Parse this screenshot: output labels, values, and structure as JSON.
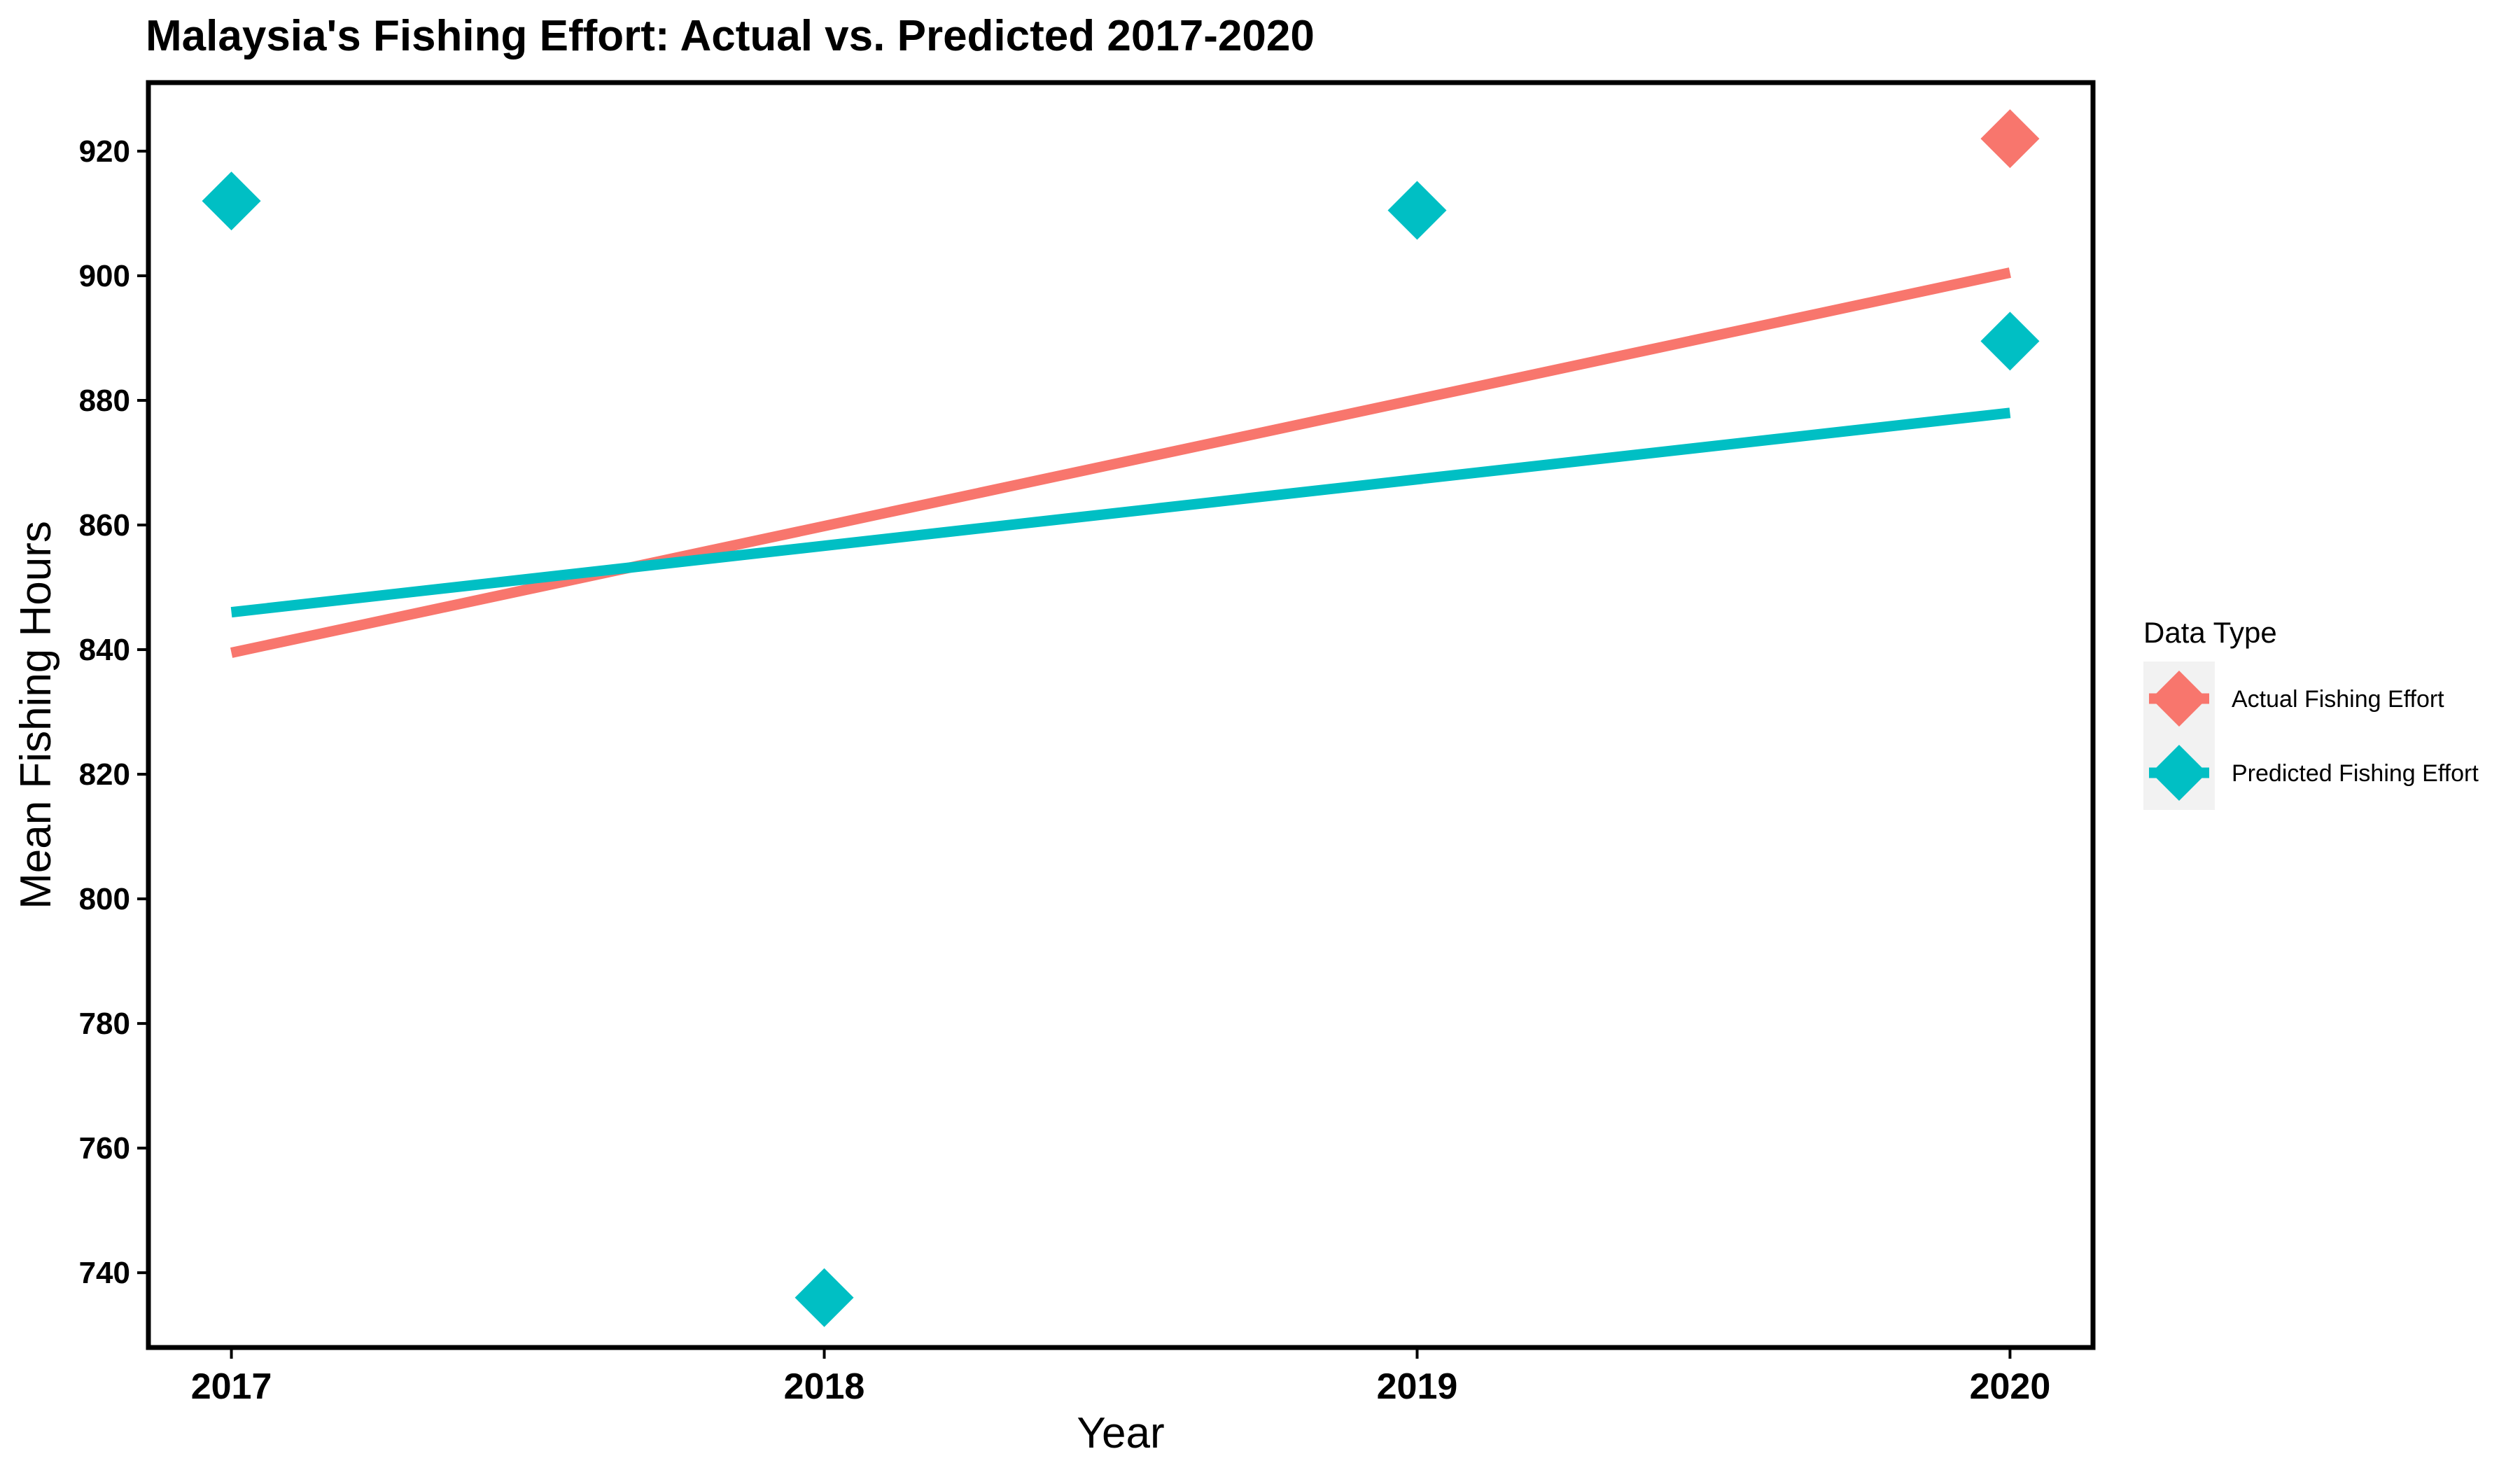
{
  "chart_data": {
    "type": "scatter",
    "title": "Malaysia's Fishing Effort: Actual vs. Predicted 2017-2020",
    "xlabel": "Year",
    "ylabel": "Mean Fishing Hours",
    "x_ticks": [
      2017,
      2018,
      2019,
      2020
    ],
    "y_ticks": [
      740,
      760,
      780,
      800,
      820,
      840,
      860,
      880,
      900,
      920
    ],
    "xlim": [
      2016.86,
      2020.14
    ],
    "ylim": [
      728,
      931
    ],
    "grid": false,
    "legend": {
      "title": "Data Type",
      "placement": "right"
    },
    "series": [
      {
        "name": "Actual Fishing Effort",
        "color": "#F8766D",
        "points": [
          {
            "x": 2020,
            "y": 922
          }
        ],
        "trend": {
          "x": [
            2017,
            2020
          ],
          "y": [
            839.5,
            900.5
          ]
        }
      },
      {
        "name": "Predicted Fishing Effort",
        "color": "#00BFC4",
        "points": [
          {
            "x": 2017,
            "y": 912
          },
          {
            "x": 2018,
            "y": 736
          },
          {
            "x": 2019,
            "y": 910.5
          },
          {
            "x": 2020,
            "y": 889.5
          }
        ],
        "trend": {
          "x": [
            2017,
            2020
          ],
          "y": [
            846,
            878
          ]
        }
      }
    ]
  }
}
